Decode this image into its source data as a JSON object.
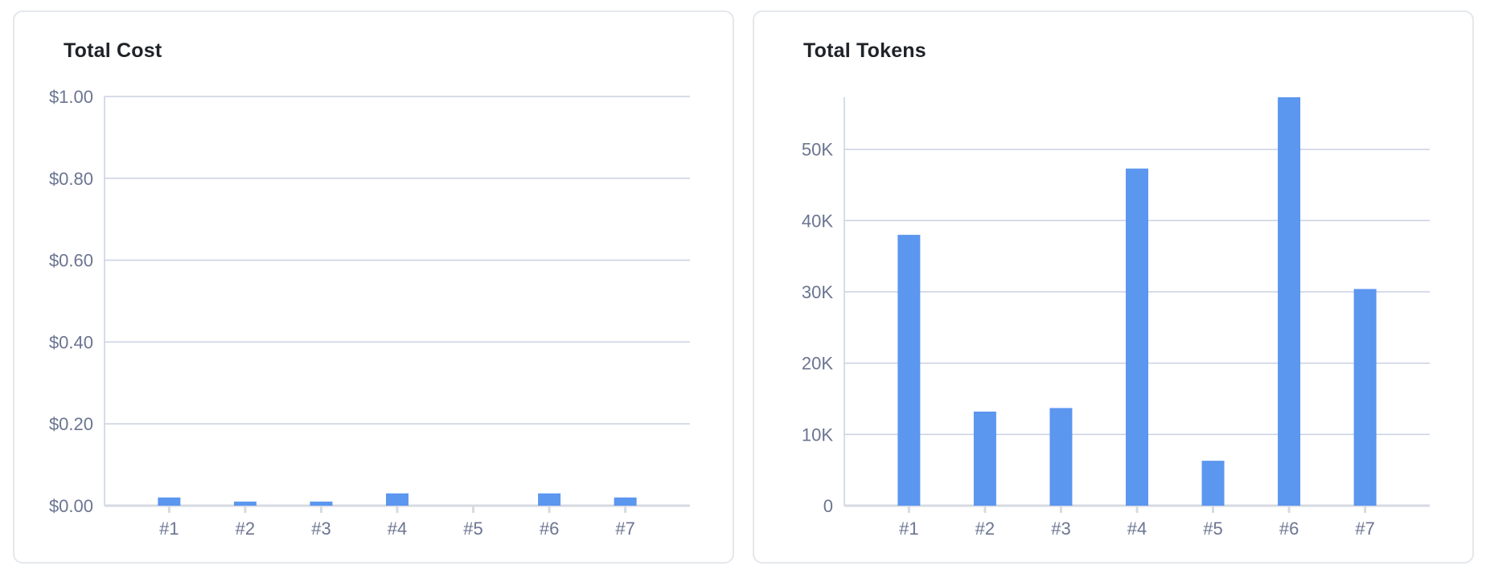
{
  "chart_data": [
    {
      "type": "bar",
      "title": "Total Cost",
      "categories": [
        "#1",
        "#2",
        "#3",
        "#4",
        "#5",
        "#6",
        "#7"
      ],
      "values": [
        0.02,
        0.01,
        0.01,
        0.03,
        0.0,
        0.03,
        0.02
      ],
      "ylim": [
        0,
        1.0
      ],
      "yticks": [
        0,
        0.2,
        0.4,
        0.6,
        0.8,
        1.0
      ],
      "ytick_labels": [
        "$0.00",
        "$0.20",
        "$0.40",
        "$0.60",
        "$0.80",
        "$1.00"
      ],
      "xlabel": "",
      "ylabel": "",
      "grid": true,
      "bar_color": "#5b96ef"
    },
    {
      "type": "bar",
      "title": "Total Tokens",
      "categories": [
        "#1",
        "#2",
        "#3",
        "#4",
        "#5",
        "#6",
        "#7"
      ],
      "values": [
        38000,
        13200,
        13700,
        47300,
        6300,
        57300,
        30400
      ],
      "ylim": [
        0,
        57300
      ],
      "yticks": [
        0,
        10000,
        20000,
        30000,
        40000,
        50000
      ],
      "ytick_labels": [
        "0",
        "10K",
        "20K",
        "30K",
        "40K",
        "50K"
      ],
      "xlabel": "",
      "ylabel": "",
      "grid": true,
      "bar_color": "#5b96ef"
    }
  ],
  "colors": {
    "grid": "#c9d1e0",
    "axis_baseline": "#d6dae2",
    "tick_text": "#6b7591",
    "title_text": "#1f2328",
    "card_border": "#e4e7ec"
  }
}
